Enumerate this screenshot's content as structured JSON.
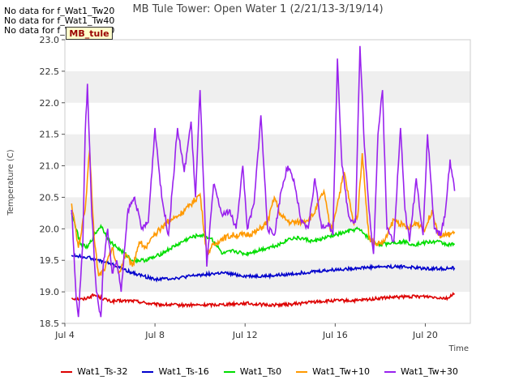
{
  "chart_data": {
    "type": "line",
    "title": "MB Tule Tower: Open Water 1 (2/21/13-3/19/14)",
    "xlabel": "Time",
    "ylabel": "Temperature (C)",
    "xlim": [
      4,
      22
    ],
    "ylim": [
      18.5,
      23.0
    ],
    "x_ticks": [
      {
        "value": 4,
        "label": "Jul 4"
      },
      {
        "value": 8,
        "label": "Jul 8"
      },
      {
        "value": 12,
        "label": "Jul 12"
      },
      {
        "value": 16,
        "label": "Jul 16"
      },
      {
        "value": 20,
        "label": "Jul 20"
      }
    ],
    "y_ticks": [
      18.5,
      19.0,
      19.5,
      20.0,
      20.5,
      21.0,
      21.5,
      22.0,
      22.5,
      23.0
    ],
    "grid": "horizontal bands",
    "legend_position": "bottom",
    "no_data_notes": [
      "No data for f_Wat1_Tw20",
      "No data for f_Wat1_Tw40",
      "No data for f_Wat1_Tw50"
    ],
    "tag_label": "MB_tule",
    "series": [
      {
        "name": "Wat1_Ts-32",
        "color": "#dd0000",
        "x": [
          4.3,
          4.8,
          5.3,
          6,
          7,
          8,
          9,
          10,
          11,
          12,
          13,
          14,
          15,
          16,
          17,
          18,
          19,
          20,
          21,
          21.3
        ],
        "y": [
          18.9,
          18.88,
          18.95,
          18.85,
          18.86,
          18.8,
          18.79,
          18.79,
          18.8,
          18.82,
          18.79,
          18.8,
          18.84,
          18.86,
          18.86,
          18.9,
          18.92,
          18.93,
          18.9,
          18.97
        ]
      },
      {
        "name": "Wat1_Ts-16",
        "color": "#0000cc",
        "x": [
          4.3,
          5,
          6,
          7,
          8,
          9,
          10,
          11,
          12,
          13,
          14,
          15,
          16,
          17,
          18,
          19,
          20,
          21,
          21.3
        ],
        "y": [
          19.58,
          19.55,
          19.45,
          19.3,
          19.2,
          19.22,
          19.27,
          19.3,
          19.25,
          19.25,
          19.28,
          19.32,
          19.35,
          19.38,
          19.4,
          19.4,
          19.37,
          19.37,
          19.38
        ]
      },
      {
        "name": "Wat1_Ts0",
        "color": "#00dd00",
        "x": [
          4.3,
          4.7,
          5.0,
          5.3,
          5.6,
          6,
          6.5,
          7,
          7.5,
          8,
          8.5,
          9,
          9.5,
          10,
          10.5,
          11,
          11.5,
          12,
          12.5,
          13,
          13.5,
          14,
          14.5,
          15,
          15.5,
          16,
          16.5,
          17,
          17.3,
          17.6,
          18,
          18.5,
          19,
          19.5,
          20,
          20.5,
          21,
          21.3
        ],
        "y": [
          20.25,
          19.75,
          19.7,
          19.9,
          20.05,
          19.8,
          19.65,
          19.5,
          19.5,
          19.55,
          19.65,
          19.75,
          19.85,
          19.9,
          19.85,
          19.6,
          19.65,
          19.6,
          19.65,
          19.7,
          19.75,
          19.85,
          19.85,
          19.8,
          19.85,
          19.9,
          19.95,
          20.0,
          19.92,
          19.8,
          19.75,
          19.78,
          19.8,
          19.75,
          19.78,
          19.8,
          19.75,
          19.75
        ]
      },
      {
        "name": "Wat1_Tw+10",
        "color": "#ff9900",
        "x": [
          4.3,
          4.6,
          4.9,
          5.1,
          5.3,
          5.5,
          5.8,
          6.1,
          6.4,
          6.7,
          7,
          7.3,
          7.6,
          8,
          8.5,
          9,
          9.5,
          10,
          10.3,
          10.5,
          10.8,
          11,
          11.5,
          12,
          12.5,
          13,
          13.3,
          13.6,
          14,
          14.5,
          15,
          15.5,
          15.8,
          16.1,
          16.4,
          16.8,
          17,
          17.2,
          17.5,
          17.8,
          18.2,
          18.6,
          19,
          19.3,
          19.6,
          20,
          20.3,
          20.6,
          21,
          21.3
        ],
        "y": [
          20.4,
          19.7,
          20.3,
          21.25,
          19.85,
          19.25,
          19.4,
          19.7,
          19.3,
          19.6,
          19.4,
          19.8,
          19.7,
          19.9,
          20.1,
          20.2,
          20.35,
          20.55,
          19.6,
          19.7,
          19.8,
          19.85,
          19.9,
          19.9,
          19.95,
          20.1,
          20.5,
          20.2,
          20.1,
          20.1,
          20.2,
          20.6,
          19.95,
          20.4,
          20.9,
          20.1,
          20.2,
          21.2,
          19.85,
          19.75,
          19.8,
          20.15,
          20.05,
          20.0,
          20.1,
          20.0,
          20.3,
          19.9,
          19.9,
          19.95
        ]
      },
      {
        "name": "Wat1_Tw+30",
        "color": "#9922ee",
        "x": [
          4.3,
          4.5,
          4.6,
          4.8,
          4.9,
          5.0,
          5.2,
          5.4,
          5.6,
          5.7,
          5.9,
          6.1,
          6.3,
          6.5,
          6.8,
          7.1,
          7.4,
          7.7,
          8.0,
          8.3,
          8.6,
          9.0,
          9.3,
          9.6,
          9.8,
          10.0,
          10.3,
          10.6,
          11.0,
          11.3,
          11.6,
          11.9,
          12.1,
          12.4,
          12.7,
          13.0,
          13.3,
          13.6,
          13.9,
          14.2,
          14.5,
          14.8,
          15.1,
          15.4,
          15.7,
          15.9,
          16.1,
          16.3,
          16.6,
          16.9,
          17.1,
          17.3,
          17.5,
          17.7,
          17.9,
          18.1,
          18.3,
          18.6,
          18.9,
          19.1,
          19.3,
          19.6,
          19.9,
          20.1,
          20.4,
          20.7,
          20.9,
          21.1,
          21.3
        ],
        "y": [
          20.3,
          18.9,
          18.6,
          19.8,
          21.5,
          22.3,
          20.2,
          19.0,
          18.6,
          19.4,
          20.0,
          19.3,
          19.5,
          19.0,
          20.3,
          20.5,
          20.0,
          20.1,
          21.6,
          20.5,
          19.9,
          21.6,
          20.9,
          21.7,
          20.5,
          22.2,
          19.4,
          20.7,
          20.2,
          20.3,
          20.0,
          21.0,
          20.0,
          20.4,
          21.8,
          20.0,
          19.9,
          20.6,
          21.0,
          20.7,
          20.1,
          20.0,
          20.8,
          20.0,
          20.1,
          19.9,
          22.7,
          21.0,
          20.2,
          20.1,
          22.9,
          21.3,
          20.3,
          19.6,
          21.5,
          22.2,
          20.0,
          19.8,
          21.6,
          20.3,
          19.8,
          20.8,
          19.9,
          21.5,
          20.0,
          19.9,
          20.3,
          21.1,
          20.6
        ]
      }
    ]
  }
}
